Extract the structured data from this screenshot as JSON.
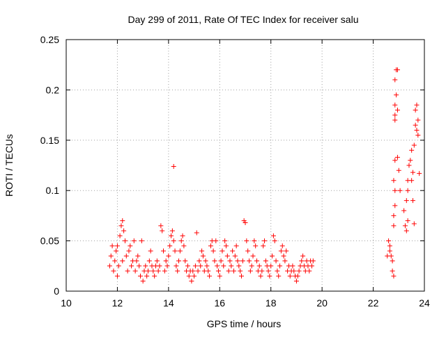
{
  "chart_data": {
    "type": "scatter",
    "title": "Day 299 of 2011, Rate Of TEC Index for receiver salu",
    "xlabel": "GPS time / hours",
    "ylabel": "ROTI / TECUs",
    "xlim": [
      10,
      24
    ],
    "ylim": [
      0,
      0.25
    ],
    "x_ticks": [
      "10",
      "12",
      "14",
      "16",
      "18",
      "20",
      "22",
      "24"
    ],
    "y_ticks": [
      "0",
      "0.05",
      "0.1",
      "0.15",
      "0.2",
      "0.25"
    ],
    "grid": true,
    "marker": "+",
    "color": "#ff0000",
    "series": [
      {
        "points": [
          [
            11.7,
            0.025
          ],
          [
            11.75,
            0.035
          ],
          [
            11.8,
            0.045
          ],
          [
            11.85,
            0.02
          ],
          [
            11.9,
            0.03
          ],
          [
            11.95,
            0.04
          ],
          [
            12.0,
            0.015
          ],
          [
            12.0,
            0.045
          ],
          [
            12.05,
            0.025
          ],
          [
            12.1,
            0.055
          ],
          [
            12.15,
            0.065
          ],
          [
            12.2,
            0.07
          ],
          [
            12.2,
            0.03
          ],
          [
            12.25,
            0.06
          ],
          [
            12.3,
            0.05
          ],
          [
            12.35,
            0.035
          ],
          [
            12.4,
            0.02
          ],
          [
            12.45,
            0.04
          ],
          [
            12.5,
            0.045
          ],
          [
            12.55,
            0.025
          ],
          [
            12.6,
            0.03
          ],
          [
            12.65,
            0.05
          ],
          [
            12.7,
            0.02
          ],
          [
            12.75,
            0.03
          ],
          [
            12.8,
            0.035
          ],
          [
            12.85,
            0.025
          ],
          [
            12.9,
            0.015
          ],
          [
            12.95,
            0.05
          ],
          [
            13.0,
            0.01
          ],
          [
            13.05,
            0.02
          ],
          [
            13.1,
            0.025
          ],
          [
            13.15,
            0.015
          ],
          [
            13.2,
            0.02
          ],
          [
            13.25,
            0.03
          ],
          [
            13.3,
            0.04
          ],
          [
            13.35,
            0.025
          ],
          [
            13.4,
            0.02
          ],
          [
            13.45,
            0.015
          ],
          [
            13.5,
            0.025
          ],
          [
            13.55,
            0.03
          ],
          [
            13.6,
            0.02
          ],
          [
            13.65,
            0.025
          ],
          [
            13.7,
            0.065
          ],
          [
            13.75,
            0.06
          ],
          [
            13.8,
            0.04
          ],
          [
            13.85,
            0.02
          ],
          [
            13.9,
            0.03
          ],
          [
            13.95,
            0.025
          ],
          [
            14.0,
            0.035
          ],
          [
            14.05,
            0.045
          ],
          [
            14.1,
            0.055
          ],
          [
            14.15,
            0.06
          ],
          [
            14.2,
            0.05
          ],
          [
            14.2,
            0.124
          ],
          [
            14.25,
            0.04
          ],
          [
            14.3,
            0.025
          ],
          [
            14.35,
            0.02
          ],
          [
            14.4,
            0.03
          ],
          [
            14.45,
            0.04
          ],
          [
            14.5,
            0.05
          ],
          [
            14.55,
            0.055
          ],
          [
            14.6,
            0.045
          ],
          [
            14.65,
            0.03
          ],
          [
            14.7,
            0.02
          ],
          [
            14.75,
            0.025
          ],
          [
            14.8,
            0.015
          ],
          [
            14.85,
            0.02
          ],
          [
            14.9,
            0.01
          ],
          [
            14.95,
            0.02
          ],
          [
            15.0,
            0.015
          ],
          [
            15.05,
            0.025
          ],
          [
            15.1,
            0.058
          ],
          [
            15.15,
            0.02
          ],
          [
            15.2,
            0.03
          ],
          [
            15.25,
            0.025
          ],
          [
            15.3,
            0.04
          ],
          [
            15.35,
            0.035
          ],
          [
            15.4,
            0.02
          ],
          [
            15.45,
            0.03
          ],
          [
            15.5,
            0.025
          ],
          [
            15.55,
            0.02
          ],
          [
            15.6,
            0.015
          ],
          [
            15.65,
            0.045
          ],
          [
            15.7,
            0.05
          ],
          [
            15.75,
            0.04
          ],
          [
            15.8,
            0.03
          ],
          [
            15.85,
            0.05
          ],
          [
            15.9,
            0.025
          ],
          [
            15.95,
            0.02
          ],
          [
            16.0,
            0.015
          ],
          [
            16.05,
            0.03
          ],
          [
            16.1,
            0.04
          ],
          [
            16.15,
            0.025
          ],
          [
            16.2,
            0.05
          ],
          [
            16.25,
            0.045
          ],
          [
            16.3,
            0.035
          ],
          [
            16.35,
            0.02
          ],
          [
            16.4,
            0.03
          ],
          [
            16.45,
            0.025
          ],
          [
            16.5,
            0.04
          ],
          [
            16.55,
            0.02
          ],
          [
            16.6,
            0.035
          ],
          [
            16.65,
            0.045
          ],
          [
            16.7,
            0.03
          ],
          [
            16.75,
            0.025
          ],
          [
            16.8,
            0.02
          ],
          [
            16.85,
            0.015
          ],
          [
            16.9,
            0.03
          ],
          [
            16.95,
            0.07
          ],
          [
            17.0,
            0.068
          ],
          [
            17.05,
            0.05
          ],
          [
            17.1,
            0.04
          ],
          [
            17.15,
            0.03
          ],
          [
            17.2,
            0.02
          ],
          [
            17.25,
            0.025
          ],
          [
            17.3,
            0.035
          ],
          [
            17.35,
            0.05
          ],
          [
            17.4,
            0.045
          ],
          [
            17.45,
            0.03
          ],
          [
            17.5,
            0.02
          ],
          [
            17.55,
            0.025
          ],
          [
            17.6,
            0.015
          ],
          [
            17.65,
            0.02
          ],
          [
            17.7,
            0.045
          ],
          [
            17.75,
            0.05
          ],
          [
            17.8,
            0.03
          ],
          [
            17.85,
            0.025
          ],
          [
            17.9,
            0.02
          ],
          [
            17.95,
            0.015
          ],
          [
            18.0,
            0.025
          ],
          [
            18.05,
            0.035
          ],
          [
            18.1,
            0.055
          ],
          [
            18.15,
            0.05
          ],
          [
            18.2,
            0.03
          ],
          [
            18.25,
            0.02
          ],
          [
            18.3,
            0.015
          ],
          [
            18.35,
            0.025
          ],
          [
            18.4,
            0.04
          ],
          [
            18.45,
            0.045
          ],
          [
            18.5,
            0.035
          ],
          [
            18.55,
            0.03
          ],
          [
            18.6,
            0.04
          ],
          [
            18.65,
            0.02
          ],
          [
            18.7,
            0.025
          ],
          [
            18.75,
            0.015
          ],
          [
            18.8,
            0.02
          ],
          [
            18.85,
            0.025
          ],
          [
            18.9,
            0.02
          ],
          [
            18.95,
            0.015
          ],
          [
            19.0,
            0.01
          ],
          [
            19.05,
            0.015
          ],
          [
            19.1,
            0.02
          ],
          [
            19.15,
            0.025
          ],
          [
            19.2,
            0.03
          ],
          [
            19.25,
            0.035
          ],
          [
            19.3,
            0.025
          ],
          [
            19.35,
            0.02
          ],
          [
            19.4,
            0.03
          ],
          [
            19.45,
            0.025
          ],
          [
            19.5,
            0.02
          ],
          [
            19.55,
            0.03
          ],
          [
            19.6,
            0.025
          ],
          [
            19.65,
            0.03
          ],
          [
            22.55,
            0.035
          ],
          [
            22.6,
            0.05
          ],
          [
            22.65,
            0.045
          ],
          [
            22.7,
            0.035
          ],
          [
            22.75,
            0.02
          ],
          [
            22.8,
            0.015
          ],
          [
            22.75,
            0.03
          ],
          [
            22.65,
            0.04
          ],
          [
            22.8,
            0.065
          ],
          [
            22.8,
            0.075
          ],
          [
            22.85,
            0.085
          ],
          [
            22.85,
            0.1
          ],
          [
            22.8,
            0.11
          ],
          [
            22.85,
            0.13
          ],
          [
            22.85,
            0.17
          ],
          [
            22.85,
            0.175
          ],
          [
            22.85,
            0.185
          ],
          [
            22.9,
            0.195
          ],
          [
            22.85,
            0.21
          ],
          [
            22.9,
            0.22
          ],
          [
            22.95,
            0.22
          ],
          [
            22.95,
            0.18
          ],
          [
            22.95,
            0.133
          ],
          [
            23.0,
            0.12
          ],
          [
            23.05,
            0.1
          ],
          [
            23.2,
            0.08
          ],
          [
            23.25,
            0.065
          ],
          [
            23.3,
            0.06
          ],
          [
            23.35,
            0.07
          ],
          [
            23.3,
            0.09
          ],
          [
            23.35,
            0.1
          ],
          [
            23.35,
            0.11
          ],
          [
            23.4,
            0.125
          ],
          [
            23.45,
            0.13
          ],
          [
            23.5,
            0.14
          ],
          [
            23.5,
            0.11
          ],
          [
            23.55,
            0.118
          ],
          [
            23.6,
            0.145
          ],
          [
            23.65,
            0.165
          ],
          [
            23.65,
            0.18
          ],
          [
            23.7,
            0.185
          ],
          [
            23.75,
            0.17
          ],
          [
            23.75,
            0.155
          ],
          [
            23.7,
            0.16
          ],
          [
            23.8,
            0.117
          ],
          [
            23.6,
            0.067
          ],
          [
            23.55,
            0.09
          ]
        ]
      }
    ]
  }
}
